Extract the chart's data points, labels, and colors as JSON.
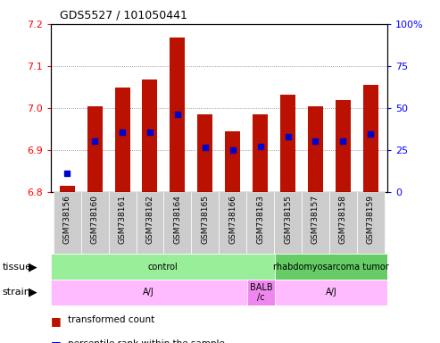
{
  "title": "GDS5527 / 101050441",
  "samples": [
    "GSM738156",
    "GSM738160",
    "GSM738161",
    "GSM738162",
    "GSM738164",
    "GSM738165",
    "GSM738166",
    "GSM738163",
    "GSM738155",
    "GSM738157",
    "GSM738158",
    "GSM738159"
  ],
  "transformed_count": [
    6.815,
    7.005,
    7.048,
    7.068,
    7.168,
    6.985,
    6.945,
    6.985,
    7.032,
    7.005,
    7.018,
    7.055
  ],
  "percentile_rank_value": [
    6.845,
    6.922,
    6.942,
    6.942,
    6.984,
    6.906,
    6.9,
    6.908,
    6.932,
    6.922,
    6.922,
    6.938
  ],
  "ylim_left": [
    6.8,
    7.2
  ],
  "ylim_right": [
    0,
    100
  ],
  "yticks_left": [
    6.8,
    6.9,
    7.0,
    7.1,
    7.2
  ],
  "yticks_right": [
    0,
    25,
    50,
    75,
    100
  ],
  "tissue_groups": [
    {
      "label": "control",
      "start": 0,
      "end": 8,
      "color": "#99ee99"
    },
    {
      "label": "rhabdomyosarcoma tumor",
      "start": 8,
      "end": 12,
      "color": "#66cc66"
    }
  ],
  "strain_groups": [
    {
      "label": "A/J",
      "start": 0,
      "end": 7,
      "color": "#ffbbff"
    },
    {
      "label": "BALB\n/c",
      "start": 7,
      "end": 8,
      "color": "#ee88ee"
    },
    {
      "label": "A/J",
      "start": 8,
      "end": 12,
      "color": "#ffbbff"
    }
  ],
  "bar_color": "#bb1100",
  "dot_color": "#0000cc",
  "background_color": "#ffffff",
  "plot_bg_color": "#ffffff",
  "xtick_bg_color": "#cccccc",
  "title_fontsize": 9,
  "bar_width": 0.55
}
